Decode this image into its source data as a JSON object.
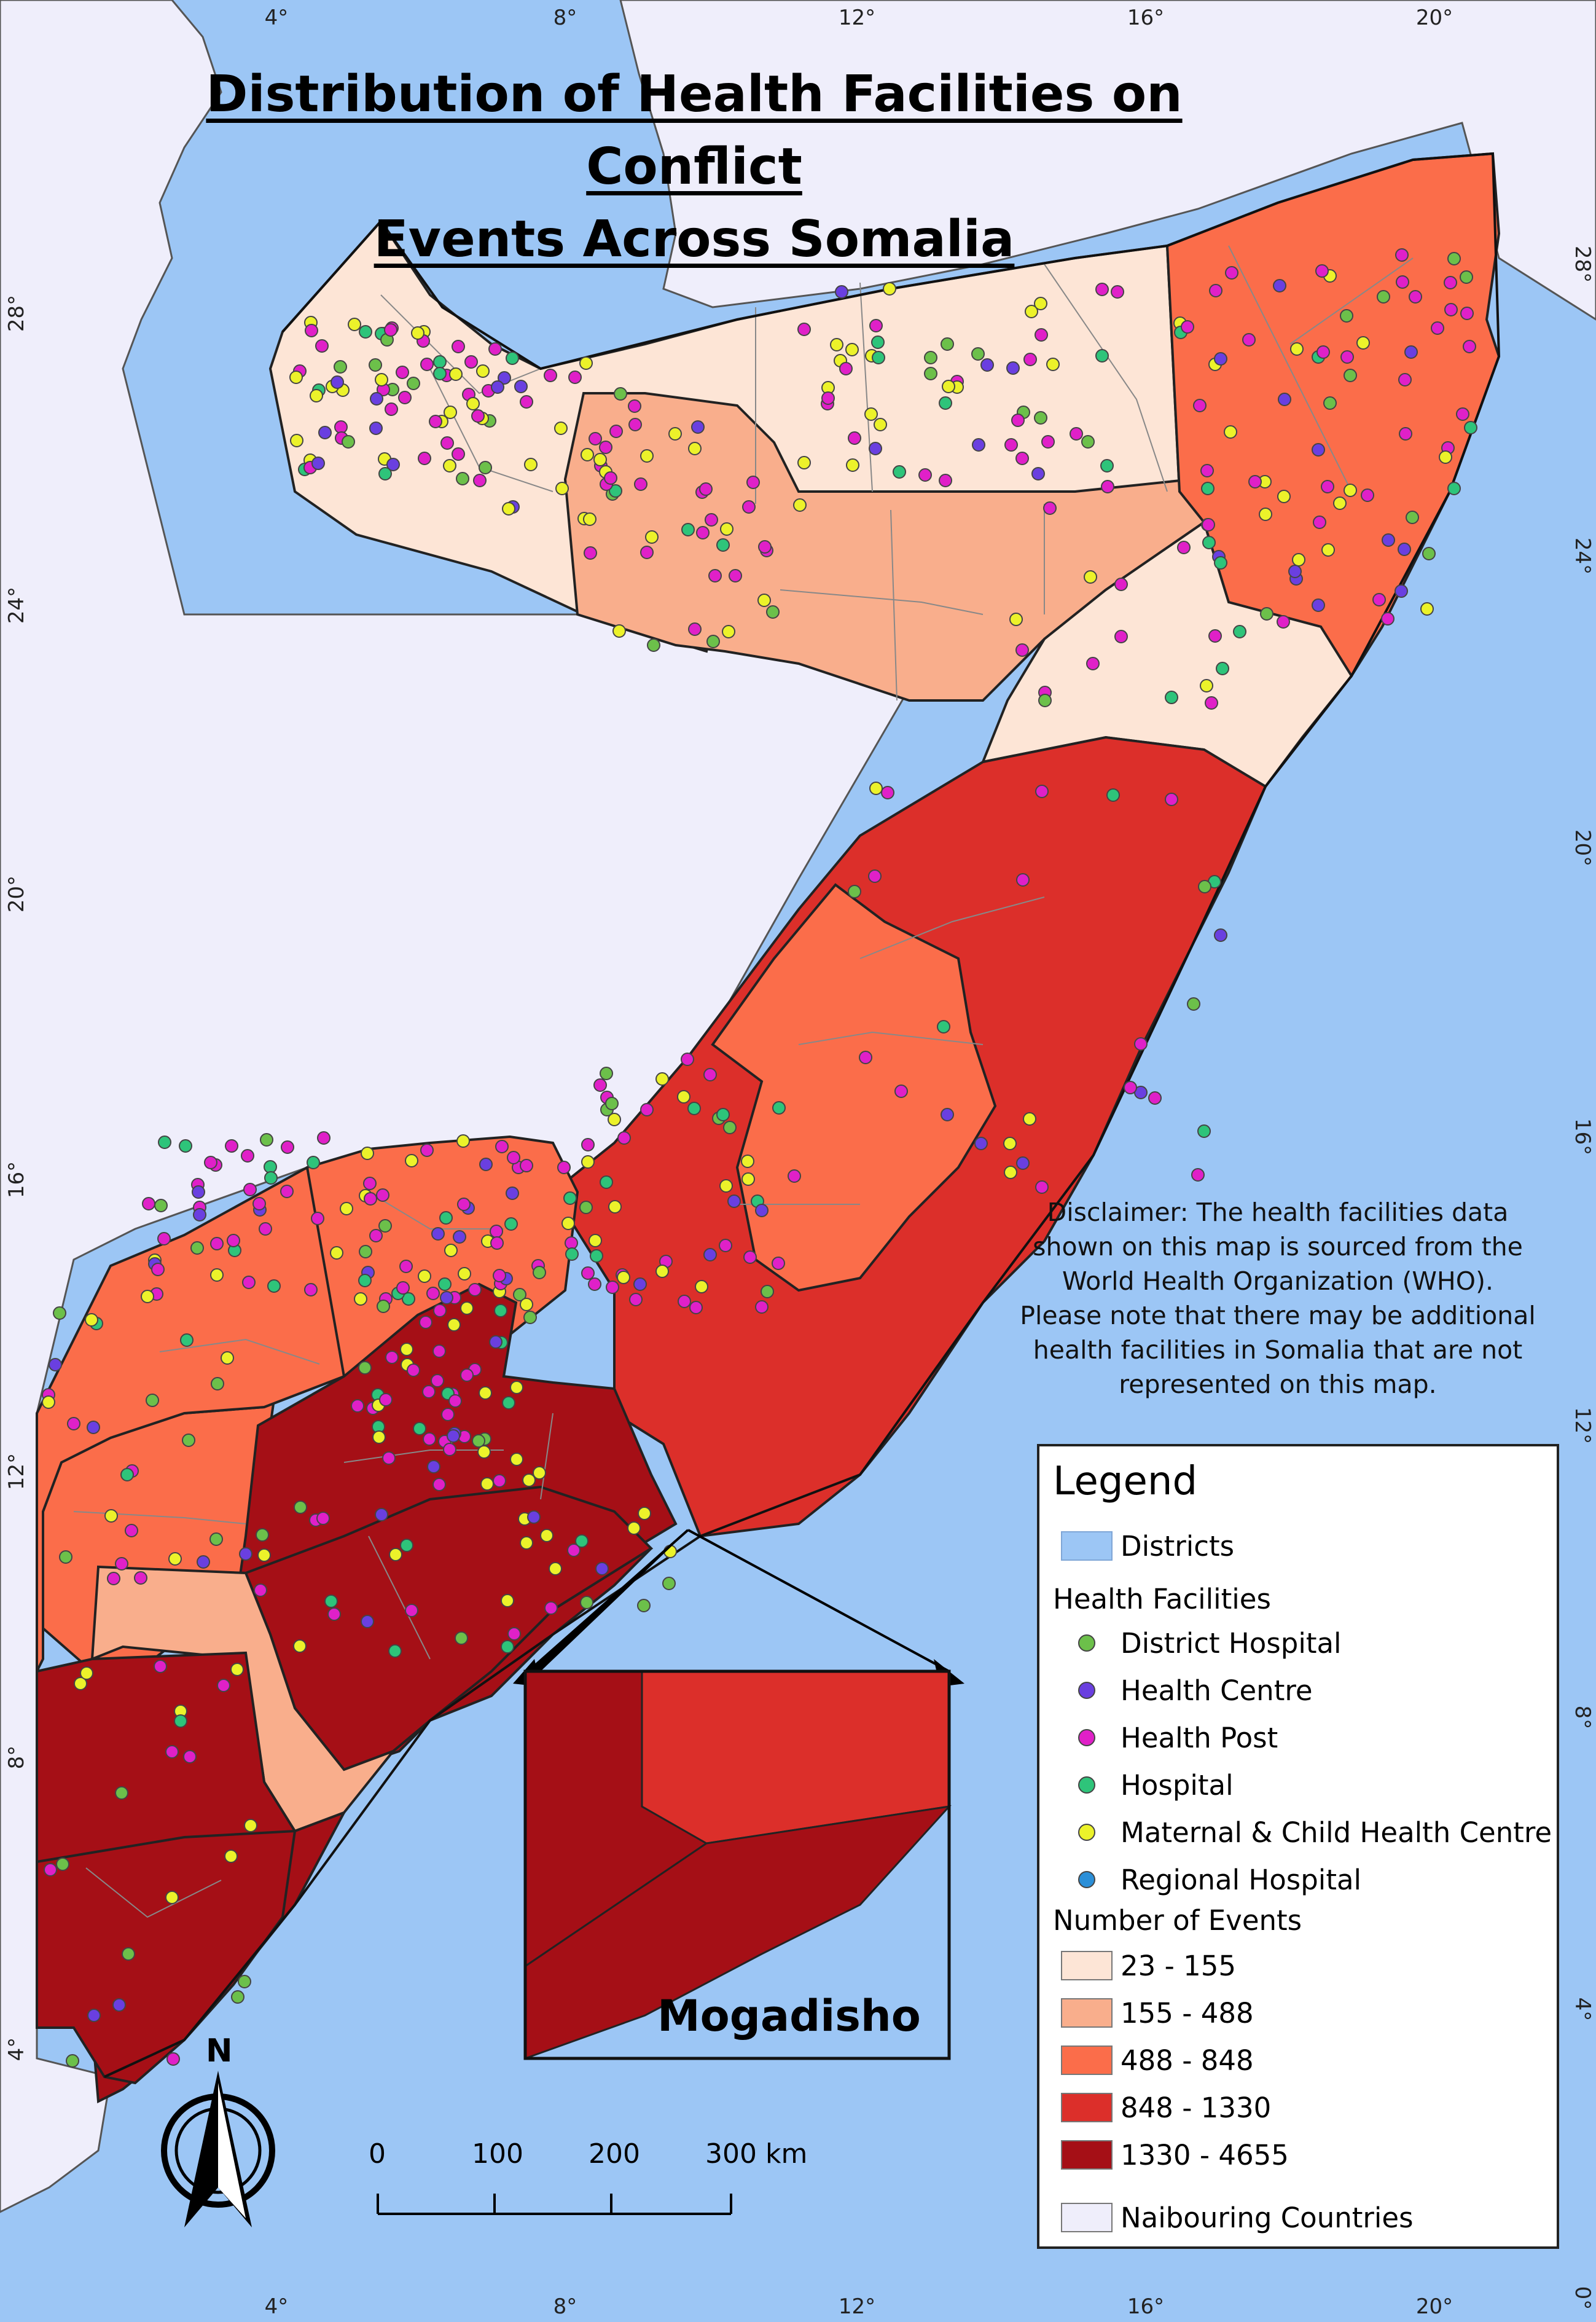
{
  "title_line1": "Distribution of Health Facilities on Conflict",
  "title_line2": "Events Across Somalia",
  "disclaimer": [
    "Disclaimer: The health facilities data",
    "shown on this map is sourced from the",
    "World Health Organization (WHO).",
    "Please note that there may be additional",
    "health facilities in Somalia that are not",
    "represented on this map."
  ],
  "inset_label": "Mogadisho",
  "north_label": "N",
  "scale_bar": {
    "labels": [
      "0",
      "100",
      "200",
      "300 km"
    ]
  },
  "graticule": {
    "x_labels": [
      "4°",
      "8°",
      "12°",
      "16°",
      "20°"
    ],
    "y_labels": [
      "28°",
      "24°",
      "20°",
      "16°",
      "12°",
      "8°",
      "4°"
    ],
    "right_y_labels": [
      "28°",
      "24°",
      "20°",
      "16°",
      "12°",
      "8°",
      "4°",
      "0°"
    ]
  },
  "legend": {
    "title": "Legend",
    "districts_label": "Districts",
    "facilities_title": "Health Facilities",
    "facilities": [
      {
        "label": "District Hospital",
        "color": "#6cc04a"
      },
      {
        "label": "Health Centre",
        "color": "#6a3fe0"
      },
      {
        "label": "Health Post",
        "color": "#e020c8"
      },
      {
        "label": "Hospital",
        "color": "#2ec47a"
      },
      {
        "label": "Maternal & Child Health Centre",
        "color": "#ecf22a"
      },
      {
        "label": "Regional Hospital",
        "color": "#2b8fd8"
      }
    ],
    "events_title": "Number of Events",
    "classes": [
      {
        "label": "23 - 155",
        "color": "#fde5d6"
      },
      {
        "label": "155 - 488",
        "color": "#f9ae8c"
      },
      {
        "label": "488 - 848",
        "color": "#fb6d4a"
      },
      {
        "label": "848 - 1330",
        "color": "#dc2f2a"
      },
      {
        "label": "1330 - 4655",
        "color": "#a50f16"
      }
    ],
    "neighbour_label": "Naibouring Countries",
    "neighbour_color": "#efeefb"
  }
}
